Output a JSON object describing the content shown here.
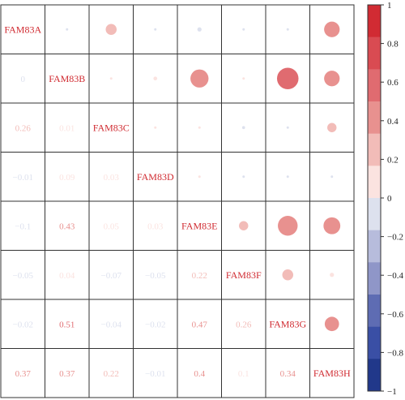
{
  "chart_data": {
    "type": "heatmap",
    "variables": [
      "FAM83A",
      "FAM83B",
      "FAM83C",
      "FAM83D",
      "FAM83E",
      "FAM83F",
      "FAM83G",
      "FAM83H"
    ],
    "correlation_matrix": [
      [
        1.0,
        0.0,
        0.26,
        -0.01,
        -0.1,
        -0.05,
        -0.02,
        0.37
      ],
      [
        0.0,
        1.0,
        0.01,
        0.09,
        0.43,
        0.04,
        0.51,
        0.37
      ],
      [
        0.26,
        0.01,
        1.0,
        0.03,
        0.05,
        -0.07,
        -0.04,
        0.22
      ],
      [
        -0.01,
        0.09,
        0.03,
        1.0,
        0.03,
        -0.05,
        -0.02,
        -0.01
      ],
      [
        -0.1,
        0.43,
        0.05,
        0.03,
        1.0,
        0.22,
        0.47,
        0.4
      ],
      [
        -0.05,
        0.04,
        -0.07,
        -0.05,
        0.22,
        1.0,
        0.26,
        0.1
      ],
      [
        -0.02,
        0.51,
        -0.04,
        -0.02,
        0.47,
        0.26,
        1.0,
        0.34
      ],
      [
        0.37,
        0.37,
        0.22,
        -0.01,
        0.4,
        0.1,
        0.34,
        1.0
      ]
    ],
    "lower_triangle_labels": [
      [
        "0"
      ],
      [
        "0.26",
        "0.01"
      ],
      [
        "−0.01",
        "0.09",
        "0.03"
      ],
      [
        "−0.1",
        "0.43",
        "0.05",
        "0.03"
      ],
      [
        "−0.05",
        "0.04",
        "−0.07",
        "−0.05",
        "0.22"
      ],
      [
        "−0.02",
        "0.51",
        "−0.04",
        "−0.02",
        "0.47",
        "0.26"
      ],
      [
        "0.37",
        "0.37",
        "0.22",
        "−0.01",
        "0.4",
        "0.1",
        "0.34"
      ]
    ],
    "upper_triangle": "circles",
    "lower_triangle": "numbers",
    "diagonal": "variable names",
    "colorbar": {
      "range": [
        -1,
        1
      ],
      "ticks": [
        1,
        0.8,
        0.6,
        0.4,
        0.2,
        0,
        -0.2,
        -0.4,
        -0.6,
        -0.8,
        -1
      ],
      "tick_labels": [
        "1",
        "0.8",
        "0.6",
        "0.4",
        "0.2",
        "0",
        "−0.2",
        "−0.4",
        "−0.6",
        "−0.8",
        "−1"
      ],
      "colors_top_to_bottom": [
        "#d12b33",
        "#d94b52",
        "#e06b70",
        "#e8918f",
        "#f2bcb8",
        "#fbe3e0",
        "#dde1ee",
        "#b7bcdc",
        "#8f96c8",
        "#5e6cb3",
        "#3a4fa5",
        "#21388a"
      ]
    },
    "legend_position": "right",
    "grid": true
  }
}
